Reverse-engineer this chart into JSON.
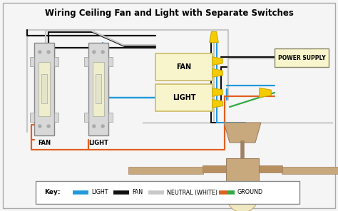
{
  "title": "Wiring Ceiling Fan and Light with Separate Switches",
  "bg_color": "#f5f5f5",
  "title_fontsize": 8.5,
  "switch_fill": "#d8d8d8",
  "switch_inner": "#e8e8d8",
  "switch_rocker": "#e0e0cc",
  "box_fill": "#f8f5cc",
  "box_border": "#ccbb66",
  "fan_color": "#c8a97e",
  "fan_dark": "#a08060",
  "connector_yellow": "#f5cc00",
  "connector_border": "#ccaa00",
  "wire_neutral": "#c8c8c8",
  "wire_fan": "#111111",
  "wire_light": "#2299dd",
  "wire_ground": "#e06020",
  "wire_green": "#33aa44",
  "ps_fill": "#f8f5cc",
  "ps_border": "#888866",
  "lw": 1.6,
  "key_items": [
    {
      "label": "LIGHT",
      "c1": "#2299dd",
      "c2": null
    },
    {
      "label": "FAN",
      "c1": "#111111",
      "c2": null
    },
    {
      "label": "NEUTRAL (WHITE)",
      "c1": "#c8c8c8",
      "c2": null
    },
    {
      "label": "GROUND",
      "c1": "#e06020",
      "c2": "#33aa44"
    }
  ]
}
